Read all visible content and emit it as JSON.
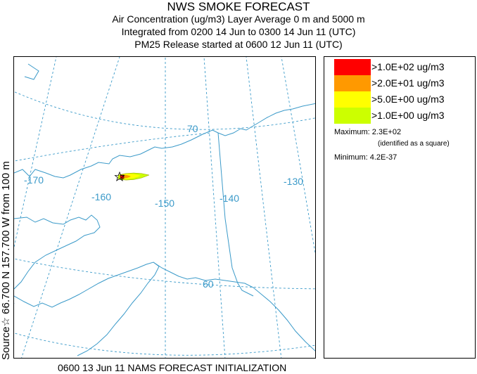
{
  "header": {
    "title": "NWS SMOKE FORECAST",
    "line2": "Air Concentration (ug/m3) Layer Average    0 m and  5000 m",
    "line3": "Integrated from 0200 14 Jun to 0300 14 Jun 11 (UTC)",
    "line4": "PM25 Release started at 0600 12 Jun 11 (UTC)"
  },
  "side_label": "Source☆ 66.700 N 157.700 W    from 100 m",
  "bottom_label": "0600 13 Jun 11 NAMS FORECAST INITIALIZATION",
  "map": {
    "longitude_labels": [
      "-170",
      "-160",
      "-150",
      "-140",
      "-130"
    ],
    "latitude_labels": [
      "70",
      "60"
    ],
    "graticule_color": "#3b9ac9",
    "coast_color": "#3b9ac9",
    "source_marker": "star-icon"
  },
  "legend": {
    "items": [
      {
        "color": "#ff0000",
        "label": ">1.0E+02 ug/m3"
      },
      {
        "color": "#ff9900",
        "label": ">2.0E+01 ug/m3"
      },
      {
        "color": "#ffff00",
        "label": ">5.0E+00 ug/m3"
      },
      {
        "color": "#ccff00",
        "label": ">1.0E+00 ug/m3"
      }
    ],
    "maximum": "Maximum: 2.3E+02",
    "maximum_note": "(identified as a square)",
    "minimum": "Minimum: 4.2E-37"
  }
}
